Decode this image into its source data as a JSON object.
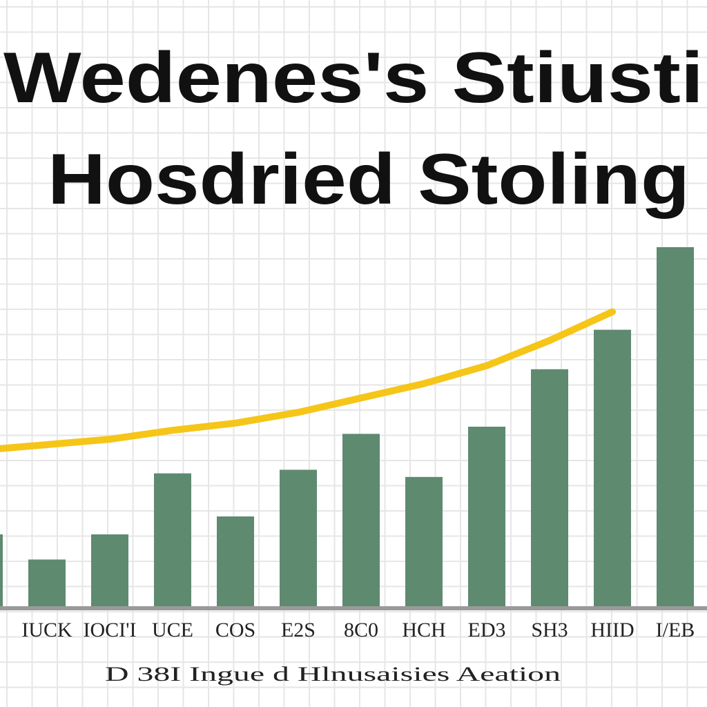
{
  "chart_data": {
    "type": "bar",
    "title": "Wedenes's Stiusti",
    "subtitle": "Hosdried Stoling",
    "x_label": "D 38I Ingue d Hlnusaisies Aeation",
    "categories": [
      null,
      "IUCK",
      "IOCI'I",
      "UCE",
      "COS",
      "E2S",
      "8C0",
      "HCH",
      "ED3",
      "SH3",
      "HIID",
      "I/EB"
    ],
    "series": [
      {
        "type": "bar",
        "color": "#5e8a70",
        "values": [
          2.0,
          1.3,
          2.0,
          3.7,
          2.5,
          3.8,
          4.8,
          3.6,
          5.0,
          6.6,
          7.7,
          10.0
        ]
      },
      {
        "type": "line",
        "color": "#f5c518",
        "values": [
          4.35,
          4.5,
          4.65,
          4.9,
          5.1,
          5.4,
          5.8,
          6.2,
          6.7,
          7.4,
          8.2,
          null
        ]
      }
    ],
    "ylim": [
      0,
      10
    ],
    "grid": true
  }
}
